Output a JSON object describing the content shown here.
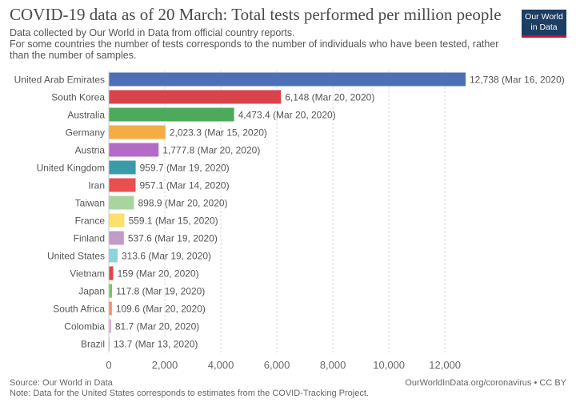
{
  "header": {
    "title": "COVID-19 data as of 20 March: Total tests performed per million people",
    "subtitle_lines": [
      "Data collected by Our World in Data from official country reports.",
      "For some countries the number of tests corresponds to the number of individuals who have been tested, rather",
      "than the number of samples."
    ]
  },
  "logo": {
    "line1": "Our World",
    "line2": "in Data"
  },
  "footer": {
    "source": "Source: Our World in Data",
    "note": "Note: Data for the United States corresponds to estimates from the COVID-Tracking Project.",
    "credit": "OurWorldInData.org/coronavirus • CC BY"
  },
  "chart_data": {
    "type": "bar",
    "orientation": "horizontal",
    "title": "COVID-19 data as of 20 March: Total tests performed per million people",
    "xlim": [
      0,
      12738
    ],
    "x_ticks": [
      0,
      2000,
      4000,
      6000,
      8000,
      10000,
      12000
    ],
    "x_tick_labels": [
      "0",
      "2,000",
      "4,000",
      "6,000",
      "8,000",
      "10,000",
      "12,000"
    ],
    "grid": "vertical dashed",
    "bars": [
      {
        "category": "United Arab Emirates",
        "value": 12738,
        "label": "12,738 (Mar 16, 2020)",
        "color": "#4c6fb5"
      },
      {
        "category": "South Korea",
        "value": 6148,
        "label": "6,148 (Mar 20, 2020)",
        "color": "#d9434b"
      },
      {
        "category": "Australia",
        "value": 4473.4,
        "label": "4,473.4 (Mar 20, 2020)",
        "color": "#4caa5a"
      },
      {
        "category": "Germany",
        "value": 2023.3,
        "label": "2,023.3 (Mar 15, 2020)",
        "color": "#f4ac45"
      },
      {
        "category": "Austria",
        "value": 1777.8,
        "label": "1,777.8 (Mar 20, 2020)",
        "color": "#b46ac9"
      },
      {
        "category": "United Kingdom",
        "value": 959.7,
        "label": "959.7 (Mar 19, 2020)",
        "color": "#3a9ba8"
      },
      {
        "category": "Iran",
        "value": 957.1,
        "label": "957.1 (Mar 14, 2020)",
        "color": "#e94f4f"
      },
      {
        "category": "Taiwan",
        "value": 898.9,
        "label": "898.9 (Mar 20, 2020)",
        "color": "#a8d59e"
      },
      {
        "category": "France",
        "value": 559.1,
        "label": "559.1 (Mar 15, 2020)",
        "color": "#fbe06e"
      },
      {
        "category": "Finland",
        "value": 537.6,
        "label": "537.6 (Mar 19, 2020)",
        "color": "#c29bc6"
      },
      {
        "category": "United States",
        "value": 313.6,
        "label": "313.6 (Mar 19, 2020)",
        "color": "#8cd3db"
      },
      {
        "category": "Vietnam",
        "value": 159,
        "label": "159 (Mar 20, 2020)",
        "color": "#e04848"
      },
      {
        "category": "Japan",
        "value": 117.8,
        "label": "117.8 (Mar 19, 2020)",
        "color": "#7bc36a"
      },
      {
        "category": "South Africa",
        "value": 109.6,
        "label": "109.6 (Mar 20, 2020)",
        "color": "#f19072"
      },
      {
        "category": "Colombia",
        "value": 81.7,
        "label": "81.7 (Mar 20, 2020)",
        "color": "#e2a8d2"
      },
      {
        "category": "Brazil",
        "value": 13.7,
        "label": "13.7 (Mar 13, 2020)",
        "color": "#b0b8c8"
      }
    ]
  }
}
